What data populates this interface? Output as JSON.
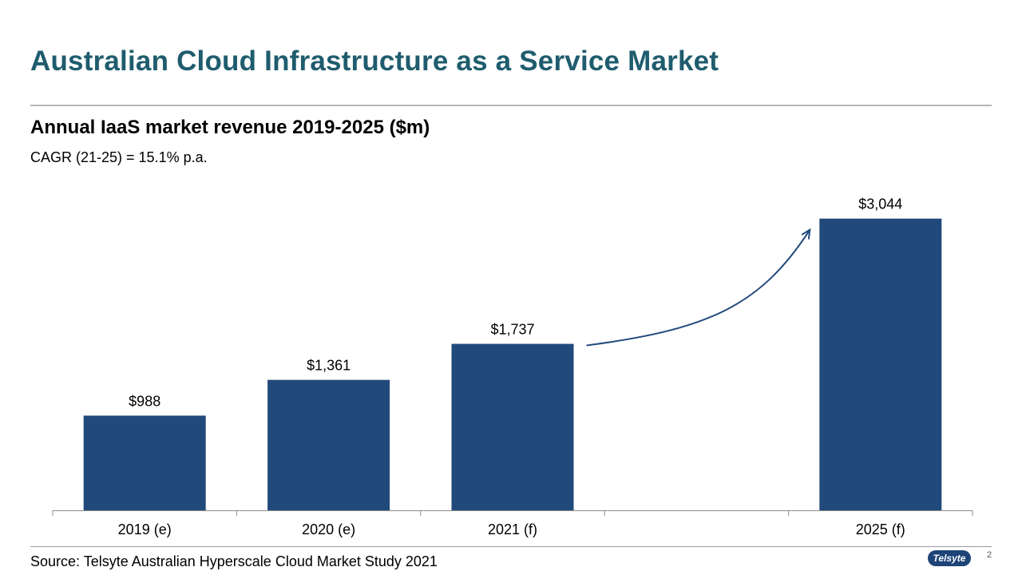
{
  "header": {
    "title": "Australian Cloud Infrastructure as a Service Market",
    "subtitle": "Annual IaaS market revenue 2019-2025 ($m)",
    "cagr": "CAGR (21-25) = 15.1% p.a."
  },
  "footer": {
    "source": "Source: Telsyte Australian Hyperscale Cloud Market Study 2021",
    "page_number": "2",
    "logo_text": "Telsyte"
  },
  "colors": {
    "title": "#1f5c6e",
    "bar": "#21497b",
    "arrow": "#21497b"
  },
  "chart_data": {
    "type": "bar",
    "title": "Annual IaaS market revenue 2019-2025 ($m)",
    "categories": [
      "2019 (e)",
      "2020 (e)",
      "2021 (f)",
      "",
      "2025 (f)"
    ],
    "values": [
      988,
      1361,
      1737,
      null,
      3044
    ],
    "data_labels": [
      "$988",
      "$1,361",
      "$1,737",
      "",
      "$3,044"
    ],
    "ylim": [
      0,
      3300
    ],
    "xlabel": "",
    "ylabel": "",
    "grid": false,
    "annotations": [
      {
        "type": "growth-arrow",
        "from": "2021 (f)",
        "to": "2025 (f)"
      }
    ]
  }
}
